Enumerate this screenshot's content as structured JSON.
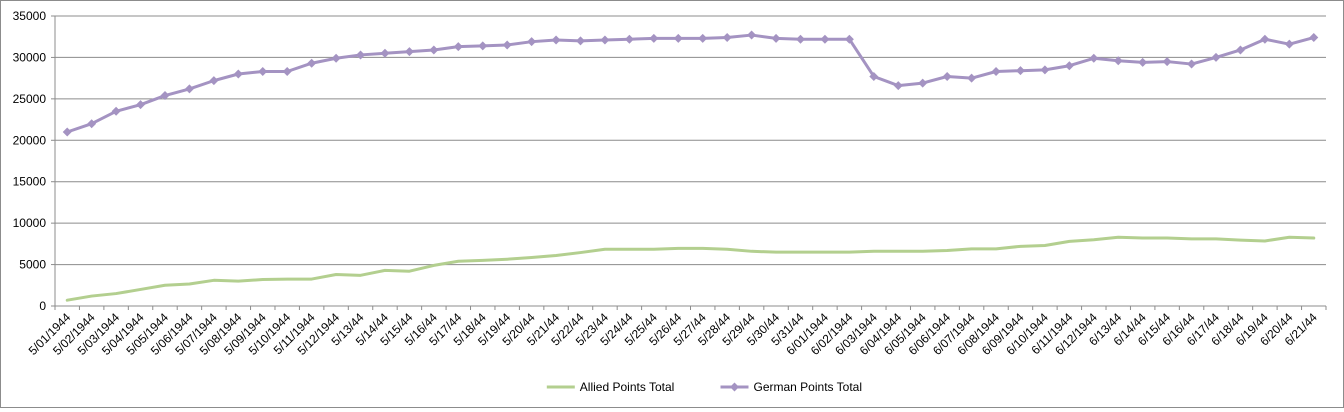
{
  "chart_data": {
    "type": "line",
    "title": "",
    "xlabel": "",
    "ylabel": "",
    "ylim": [
      0,
      35000
    ],
    "yticks": [
      0,
      5000,
      10000,
      15000,
      20000,
      25000,
      30000,
      35000
    ],
    "grid": "horizontal",
    "legend_position": "bottom",
    "categories": [
      "5/01/1944",
      "5/02/1944",
      "5/03/1944",
      "5/04/1944",
      "5/05/1944",
      "5/06/1944",
      "5/07/1944",
      "5/08/1944",
      "5/09/1944",
      "5/10/1944",
      "5/11/1944",
      "5/12/1944",
      "5/13/44",
      "5/14/44",
      "5/15/44",
      "5/16/44",
      "5/17/44",
      "5/18/44",
      "5/19/44",
      "5/20/44",
      "5/21/44",
      "5/22/44",
      "5/23/44",
      "5/24/44",
      "5/25/44",
      "5/26/44",
      "5/27/44",
      "5/28/44",
      "5/29/44",
      "5/30/44",
      "5/31/44",
      "6/01/1944",
      "6/02/1944",
      "6/03/1944",
      "6/04/1944",
      "6/05/1944",
      "6/06/1944",
      "6/07/1944",
      "6/08/1944",
      "6/09/1944",
      "6/10/1944",
      "6/11/1944",
      "6/12/1944",
      "6/13/44",
      "6/14/44",
      "6/15/44",
      "6/16/44",
      "6/17/44",
      "6/18/44",
      "6/19/44",
      "6/20/44",
      "6/21/44"
    ],
    "series": [
      {
        "name": "Allied Points Total",
        "color": "#b3cf8f",
        "marker": "none",
        "values": [
          700,
          1200,
          1500,
          2000,
          2500,
          2650,
          3100,
          3000,
          3200,
          3250,
          3250,
          3800,
          3700,
          4300,
          4200,
          4900,
          5400,
          5500,
          5650,
          5850,
          6100,
          6450,
          6850,
          6850,
          6850,
          6950,
          6950,
          6850,
          6600,
          6500,
          6500,
          6500,
          6500,
          6600,
          6600,
          6600,
          6700,
          6900,
          6900,
          7200,
          7300,
          7800,
          8000,
          8300,
          8200,
          8200,
          8100,
          8100,
          7950,
          7850,
          8300,
          8200
        ]
      },
      {
        "name": "German Points Total",
        "color": "#a493c2",
        "marker": "diamond",
        "values": [
          21000,
          22000,
          23500,
          24300,
          25400,
          26200,
          27200,
          28000,
          28300,
          28300,
          29300,
          29900,
          30300,
          30500,
          30700,
          30900,
          31300,
          31400,
          31500,
          31900,
          32100,
          32000,
          32100,
          32200,
          32300,
          32300,
          32300,
          32400,
          32700,
          32300,
          32200,
          32200,
          32200,
          27700,
          26600,
          26900,
          27700,
          27500,
          28300,
          28400,
          28500,
          29000,
          29900,
          29600,
          29400,
          29500,
          29200,
          30000,
          30900,
          32200,
          31600,
          32400
        ]
      }
    ]
  }
}
